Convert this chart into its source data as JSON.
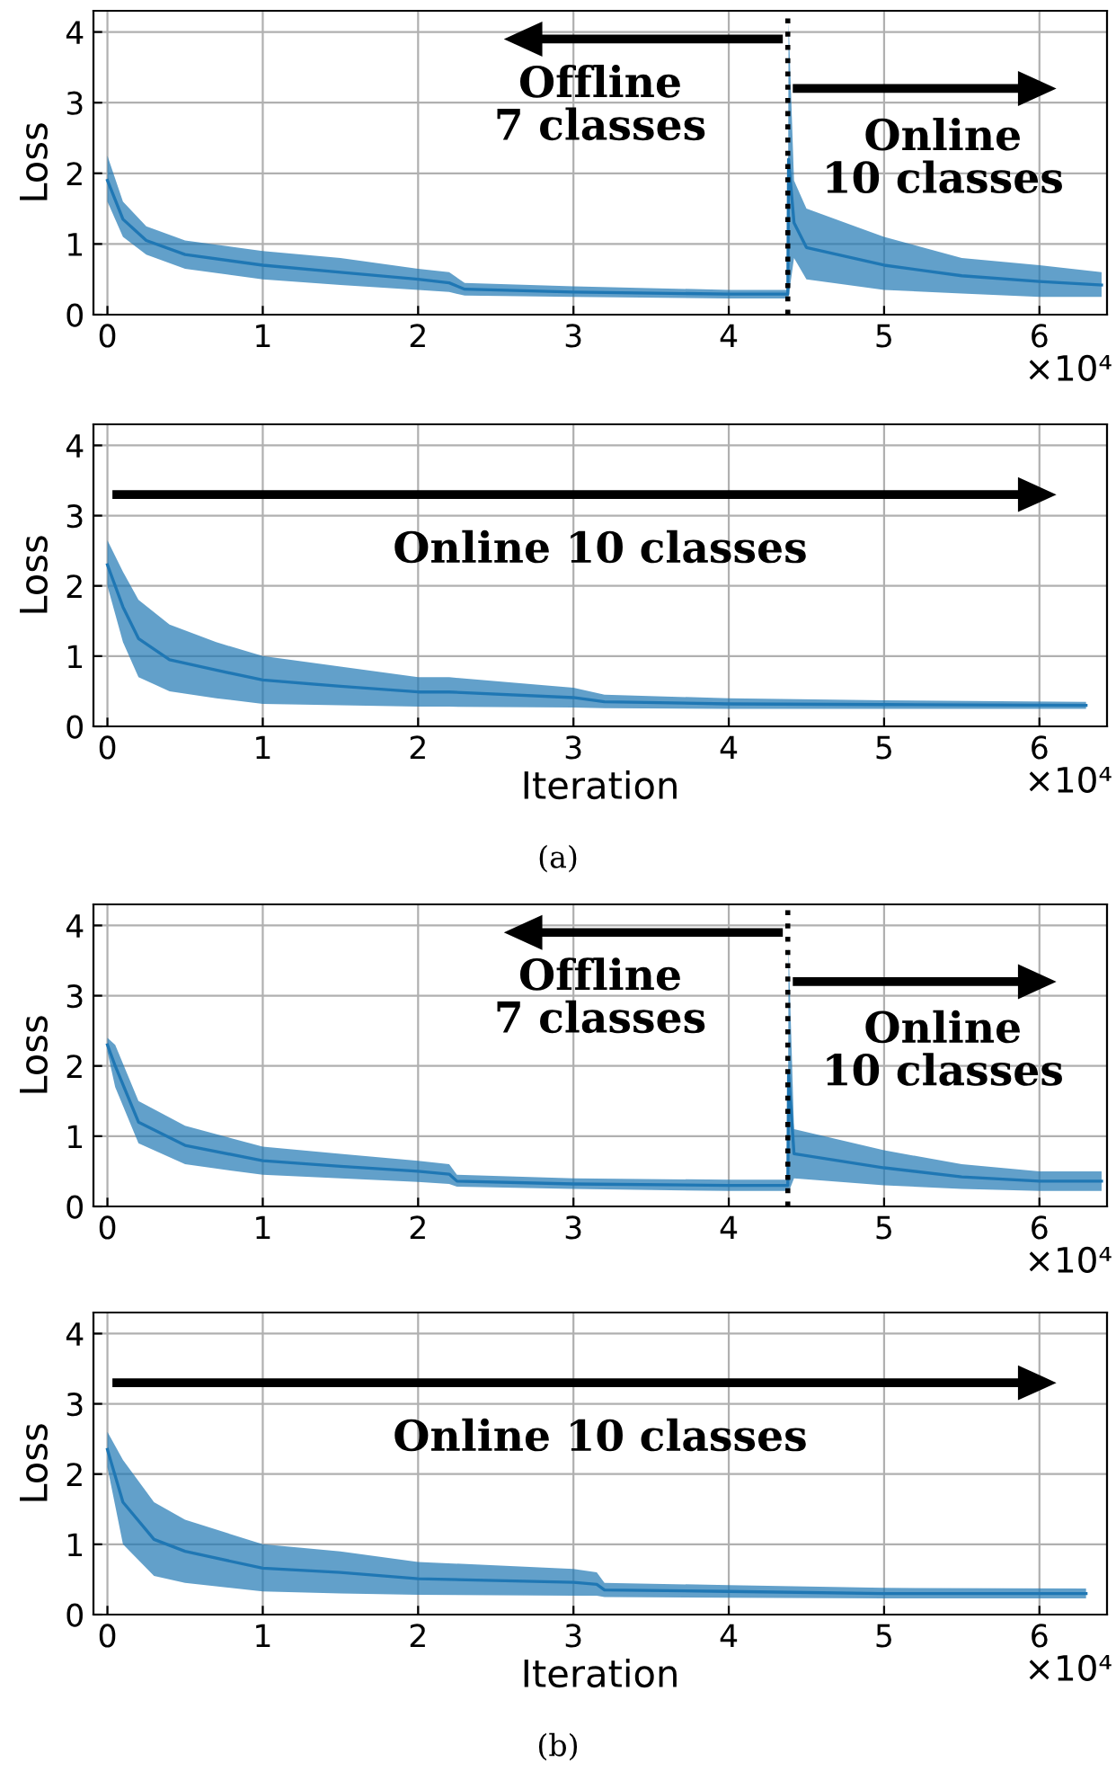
{
  "chart_data": [
    {
      "type": "line",
      "ylabel": "Loss",
      "xlim": [
        -0.09,
        6.435
      ],
      "ylim": [
        0,
        4.3
      ],
      "xticks": [
        0,
        1,
        2,
        3,
        4,
        5,
        6
      ],
      "yticks": [
        0,
        1,
        2,
        3,
        4
      ],
      "grid": true,
      "ref_lines": [
        {
          "axis": "x",
          "value": 4.38,
          "color": "#000000",
          "line_style": "dotted"
        }
      ],
      "annotations": [
        "Offline\n7 classes",
        "Online\n10 classes",
        "×10⁴"
      ],
      "series": [
        {
          "color": "#1f77b4",
          "x": [
            0,
            0.1,
            0.25,
            0.5,
            1.0,
            1.5,
            2.0,
            2.2,
            2.3,
            3.0,
            4.0,
            4.38,
            4.385,
            4.42,
            4.5,
            5.0,
            5.5,
            6.0,
            6.4
          ],
          "values": [
            1.9,
            1.35,
            1.05,
            0.85,
            0.7,
            0.6,
            0.5,
            0.45,
            0.36,
            0.32,
            0.29,
            0.29,
            2.2,
            1.3,
            0.95,
            0.7,
            0.55,
            0.47,
            0.42
          ],
          "lower": [
            1.6,
            1.1,
            0.85,
            0.65,
            0.5,
            0.42,
            0.35,
            0.32,
            0.27,
            0.25,
            0.23,
            0.23,
            0.25,
            0.8,
            0.5,
            0.35,
            0.3,
            0.25,
            0.25
          ],
          "upper": [
            2.25,
            1.6,
            1.25,
            1.05,
            0.9,
            0.8,
            0.65,
            0.6,
            0.45,
            0.4,
            0.35,
            0.35,
            4.15,
            1.9,
            1.5,
            1.1,
            0.8,
            0.7,
            0.6
          ]
        }
      ]
    },
    {
      "type": "line",
      "xlabel": "Iteration",
      "ylabel": "Loss",
      "xlim": [
        -0.09,
        6.435
      ],
      "ylim": [
        0,
        4.3
      ],
      "xticks": [
        0,
        1,
        2,
        3,
        4,
        5,
        6
      ],
      "yticks": [
        0,
        1,
        2,
        3,
        4
      ],
      "grid": true,
      "annotations": [
        "Online 10 classes",
        "×10⁴",
        "(a)"
      ],
      "series": [
        {
          "color": "#1f77b4",
          "x": [
            0,
            0.1,
            0.2,
            0.4,
            0.7,
            1.0,
            1.5,
            2.0,
            2.2,
            3.0,
            3.2,
            4.0,
            5.0,
            6.3
          ],
          "values": [
            2.3,
            1.7,
            1.25,
            0.95,
            0.8,
            0.66,
            0.57,
            0.49,
            0.49,
            0.41,
            0.35,
            0.32,
            0.31,
            0.3
          ],
          "lower": [
            2.0,
            1.2,
            0.7,
            0.5,
            0.4,
            0.32,
            0.3,
            0.28,
            0.28,
            0.27,
            0.26,
            0.25,
            0.25,
            0.25
          ],
          "upper": [
            2.65,
            2.2,
            1.8,
            1.45,
            1.2,
            1.0,
            0.85,
            0.7,
            0.7,
            0.55,
            0.45,
            0.4,
            0.37,
            0.35
          ]
        }
      ]
    },
    {
      "type": "line",
      "ylabel": "Loss",
      "xlim": [
        -0.09,
        6.435
      ],
      "ylim": [
        0,
        4.3
      ],
      "xticks": [
        0,
        1,
        2,
        3,
        4,
        5,
        6
      ],
      "yticks": [
        0,
        1,
        2,
        3,
        4
      ],
      "grid": true,
      "ref_lines": [
        {
          "axis": "x",
          "value": 4.38,
          "color": "#000000",
          "line_style": "dotted"
        }
      ],
      "annotations": [
        "Offline\n7 classes",
        "Online\n10 classes",
        "×10⁴"
      ],
      "series": [
        {
          "color": "#1f77b4",
          "x": [
            0,
            0.05,
            0.2,
            0.5,
            1.0,
            1.5,
            2.0,
            2.2,
            2.25,
            3.0,
            4.0,
            4.38,
            4.385,
            4.42,
            5.0,
            5.5,
            6.0,
            6.4
          ],
          "values": [
            2.3,
            2.0,
            1.2,
            0.87,
            0.65,
            0.57,
            0.5,
            0.46,
            0.36,
            0.32,
            0.3,
            0.3,
            1.9,
            0.75,
            0.55,
            0.42,
            0.36,
            0.36
          ],
          "lower": [
            2.2,
            1.7,
            0.9,
            0.6,
            0.45,
            0.4,
            0.35,
            0.32,
            0.28,
            0.25,
            0.22,
            0.22,
            0.2,
            0.4,
            0.3,
            0.25,
            0.22,
            0.22
          ],
          "upper": [
            2.4,
            2.3,
            1.5,
            1.15,
            0.85,
            0.75,
            0.65,
            0.6,
            0.45,
            0.4,
            0.38,
            0.38,
            3.7,
            1.1,
            0.8,
            0.6,
            0.5,
            0.5
          ]
        }
      ]
    },
    {
      "type": "line",
      "xlabel": "Iteration",
      "ylabel": "Loss",
      "xlim": [
        -0.09,
        6.435
      ],
      "ylim": [
        0,
        4.3
      ],
      "xticks": [
        0,
        1,
        2,
        3,
        4,
        5,
        6
      ],
      "yticks": [
        0,
        1,
        2,
        3,
        4
      ],
      "grid": true,
      "annotations": [
        "Online 10 classes",
        "×10⁴",
        "(b)"
      ],
      "series": [
        {
          "color": "#1f77b4",
          "x": [
            0,
            0.1,
            0.3,
            0.5,
            1.0,
            1.5,
            2.0,
            3.0,
            3.15,
            3.2,
            4.0,
            5.0,
            6.3
          ],
          "values": [
            2.35,
            1.6,
            1.07,
            0.9,
            0.66,
            0.6,
            0.51,
            0.46,
            0.43,
            0.35,
            0.33,
            0.3,
            0.3
          ],
          "lower": [
            2.1,
            1.0,
            0.55,
            0.45,
            0.33,
            0.3,
            0.28,
            0.27,
            0.27,
            0.25,
            0.24,
            0.23,
            0.23
          ],
          "upper": [
            2.6,
            2.2,
            1.6,
            1.35,
            1.0,
            0.9,
            0.75,
            0.65,
            0.6,
            0.45,
            0.42,
            0.38,
            0.37
          ]
        }
      ]
    }
  ]
}
